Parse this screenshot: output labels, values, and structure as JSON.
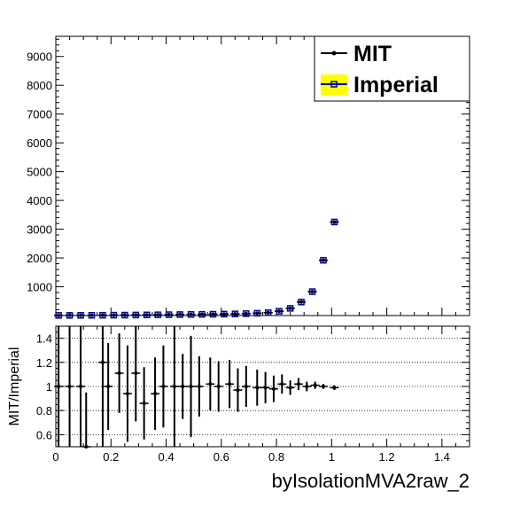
{
  "chart_data": [
    {
      "type": "scatter",
      "panel": "main",
      "xlim": [
        0,
        1.5
      ],
      "ylim": [
        0,
        9700
      ],
      "yticks": [
        1000,
        2000,
        3000,
        4000,
        5000,
        6000,
        7000,
        8000,
        9000
      ],
      "legend": {
        "placement": "top-right",
        "entries": [
          {
            "name": "MIT",
            "marker": "filled-circle",
            "color": "#000000"
          },
          {
            "name": "Imperial",
            "marker": "open-square",
            "color": "#0000aa",
            "fill": "#ffff00"
          }
        ]
      },
      "x": [
        0.01,
        0.05,
        0.09,
        0.13,
        0.17,
        0.21,
        0.25,
        0.29,
        0.33,
        0.37,
        0.41,
        0.45,
        0.49,
        0.53,
        0.57,
        0.61,
        0.65,
        0.69,
        0.73,
        0.77,
        0.81,
        0.85,
        0.89,
        0.93,
        0.97,
        1.01
      ],
      "series": [
        {
          "name": "MIT",
          "values": [
            5,
            6,
            7,
            8,
            10,
            13,
            15,
            18,
            22,
            26,
            30,
            34,
            38,
            42,
            46,
            50,
            56,
            66,
            80,
            100,
            150,
            250,
            470,
            830,
            1920,
            3250
          ]
        },
        {
          "name": "Imperial",
          "values": [
            5,
            6,
            7,
            8,
            10,
            13,
            15,
            18,
            22,
            26,
            30,
            34,
            38,
            42,
            46,
            50,
            56,
            66,
            80,
            100,
            150,
            250,
            470,
            830,
            1920,
            3250
          ]
        }
      ]
    },
    {
      "type": "scatter",
      "panel": "ratio",
      "xlabel": "byIsolationMVA2raw_2",
      "ylabel": "MIT/Imperial",
      "xlim": [
        0,
        1.5
      ],
      "ylim": [
        0.5,
        1.5
      ],
      "xticks": [
        0,
        0.2,
        0.4,
        0.6,
        0.8,
        1,
        1.2,
        1.4
      ],
      "xtick_labels": [
        "0",
        "0.2",
        "0.4",
        "0.6",
        "0.8",
        "1",
        "1.2",
        "1.4"
      ],
      "yticks": [
        0.6,
        0.8,
        1,
        1.2,
        1.4
      ],
      "ytick_labels": [
        "0.6",
        "0.8",
        "1",
        "1.2",
        "1.4"
      ],
      "grid": "horizontal-dotted",
      "points": [
        {
          "x": 0.01,
          "y": 1.0,
          "err": 0.7
        },
        {
          "x": 0.05,
          "y": 1.0,
          "err": 0.7
        },
        {
          "x": 0.09,
          "y": 1.0,
          "err": 0.7
        },
        {
          "x": 0.11,
          "y": 0.5,
          "err": 0.45
        },
        {
          "x": 0.17,
          "y": 1.2,
          "err": 0.7
        },
        {
          "x": 0.19,
          "y": 1.0,
          "err": 0.36
        },
        {
          "x": 0.23,
          "y": 1.11,
          "err": 0.33
        },
        {
          "x": 0.26,
          "y": 0.94,
          "err": 0.4
        },
        {
          "x": 0.29,
          "y": 1.11,
          "err": 0.4
        },
        {
          "x": 0.32,
          "y": 0.86,
          "err": 0.3
        },
        {
          "x": 0.36,
          "y": 0.94,
          "err": 0.3
        },
        {
          "x": 0.39,
          "y": 1.0,
          "err": 0.34
        },
        {
          "x": 0.43,
          "y": 1.0,
          "err": 0.5
        },
        {
          "x": 0.46,
          "y": 1.0,
          "err": 0.27
        },
        {
          "x": 0.49,
          "y": 1.0,
          "err": 0.42
        },
        {
          "x": 0.52,
          "y": 1.0,
          "err": 0.25
        },
        {
          "x": 0.56,
          "y": 1.02,
          "err": 0.22
        },
        {
          "x": 0.59,
          "y": 1.0,
          "err": 0.21
        },
        {
          "x": 0.63,
          "y": 1.02,
          "err": 0.2
        },
        {
          "x": 0.66,
          "y": 0.97,
          "err": 0.18
        },
        {
          "x": 0.69,
          "y": 1.0,
          "err": 0.17
        },
        {
          "x": 0.73,
          "y": 0.99,
          "err": 0.15
        },
        {
          "x": 0.76,
          "y": 0.99,
          "err": 0.13
        },
        {
          "x": 0.79,
          "y": 0.98,
          "err": 0.11
        },
        {
          "x": 0.82,
          "y": 1.02,
          "err": 0.08
        },
        {
          "x": 0.85,
          "y": 0.99,
          "err": 0.06
        },
        {
          "x": 0.88,
          "y": 1.02,
          "err": 0.05
        },
        {
          "x": 0.91,
          "y": 1.0,
          "err": 0.04
        },
        {
          "x": 0.94,
          "y": 1.01,
          "err": 0.03
        },
        {
          "x": 0.97,
          "y": 1.0,
          "err": 0.02
        },
        {
          "x": 1.01,
          "y": 0.99,
          "err": 0.02
        }
      ]
    }
  ]
}
